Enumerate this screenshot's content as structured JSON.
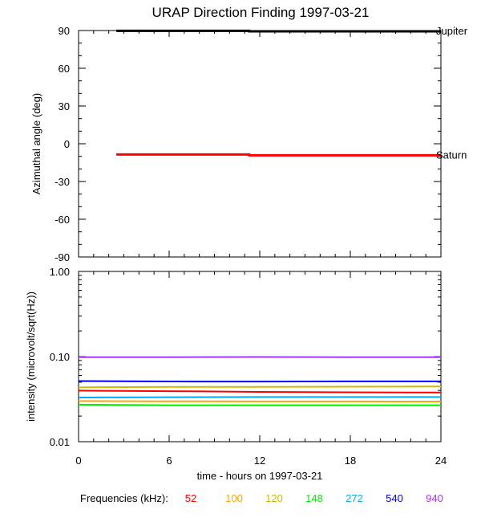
{
  "chart_data": [
    {
      "type": "line",
      "title": "URAP Direction Finding  1997-03-21",
      "ylabel": "Azimuthal angle (deg)",
      "xlim": [
        0,
        24
      ],
      "ylim": [
        -90,
        90
      ],
      "yticks": [
        90,
        60,
        30,
        0,
        -30,
        -60,
        -90
      ],
      "series": [
        {
          "name": "Jupiter",
          "color": "#000000",
          "points": [
            [
              2.5,
              89.8
            ],
            [
              11.3,
              89.8
            ],
            [
              11.3,
              89.4
            ],
            [
              24,
              89.4
            ]
          ]
        },
        {
          "name": "Saturn",
          "color": "#ff0000",
          "points": [
            [
              2.5,
              -8.5
            ],
            [
              11.3,
              -8.5
            ],
            [
              11.3,
              -9.2
            ],
            [
              24,
              -9.2
            ]
          ]
        }
      ]
    },
    {
      "type": "line",
      "ylabel": "intensity (microvolt/sqrt(Hz))",
      "xlabel": "time - hours on 1997-03-21",
      "xlim": [
        0,
        24
      ],
      "ylim": [
        0.01,
        1.0
      ],
      "yscale": "log",
      "xticks": [
        "0",
        "6",
        "12",
        "18",
        "24"
      ],
      "yticks": [
        "1.00",
        "0.10",
        "0.01"
      ],
      "series": [
        {
          "name": "52",
          "color": "#ff0000",
          "points": [
            [
              0,
              0.0398
            ],
            [
              6,
              0.0392
            ],
            [
              12,
              0.0385
            ],
            [
              18,
              0.038
            ],
            [
              24,
              0.0378
            ]
          ]
        },
        {
          "name": "100",
          "color": "#ffa500",
          "points": [
            [
              0,
              0.03
            ],
            [
              6,
              0.0298
            ],
            [
              12,
              0.0297
            ],
            [
              18,
              0.0297
            ],
            [
              24,
              0.0296
            ]
          ]
        },
        {
          "name": "120",
          "color": "#ccbb00",
          "points": [
            [
              0,
              0.0435
            ],
            [
              6,
              0.044
            ],
            [
              12,
              0.0441
            ],
            [
              18,
              0.0443
            ],
            [
              24,
              0.0445
            ]
          ]
        },
        {
          "name": "148",
          "color": "#00ee00",
          "points": [
            [
              0,
              0.0272
            ],
            [
              6,
              0.0268
            ],
            [
              12,
              0.0268
            ],
            [
              18,
              0.0268
            ],
            [
              24,
              0.0268
            ]
          ]
        },
        {
          "name": "272",
          "color": "#00aaff",
          "points": [
            [
              0,
              0.033
            ],
            [
              6,
              0.0333
            ],
            [
              12,
              0.0335
            ],
            [
              18,
              0.0335
            ],
            [
              24,
              0.0335
            ]
          ]
        },
        {
          "name": "540",
          "color": "#0000ff",
          "points": [
            [
              0,
              0.0515
            ],
            [
              6,
              0.051
            ],
            [
              12,
              0.0508
            ],
            [
              18,
              0.0512
            ],
            [
              24,
              0.0512
            ]
          ]
        },
        {
          "name": "940",
          "color": "#aa33ff",
          "points": [
            [
              0,
              0.0985
            ],
            [
              6,
              0.0985
            ],
            [
              12,
              0.099
            ],
            [
              18,
              0.0985
            ],
            [
              24,
              0.0985
            ]
          ]
        }
      ]
    }
  ],
  "legend": {
    "prefix": "Frequencies (kHz):",
    "items": [
      {
        "label": "52",
        "color": "#ff0000"
      },
      {
        "label": "100",
        "color": "#ffa500"
      },
      {
        "label": "120",
        "color": "#ccbb00"
      },
      {
        "label": "148",
        "color": "#00ee00"
      },
      {
        "label": "272",
        "color": "#00aaff"
      },
      {
        "label": "540",
        "color": "#0000ff"
      },
      {
        "label": "940",
        "color": "#aa33ff"
      }
    ]
  }
}
